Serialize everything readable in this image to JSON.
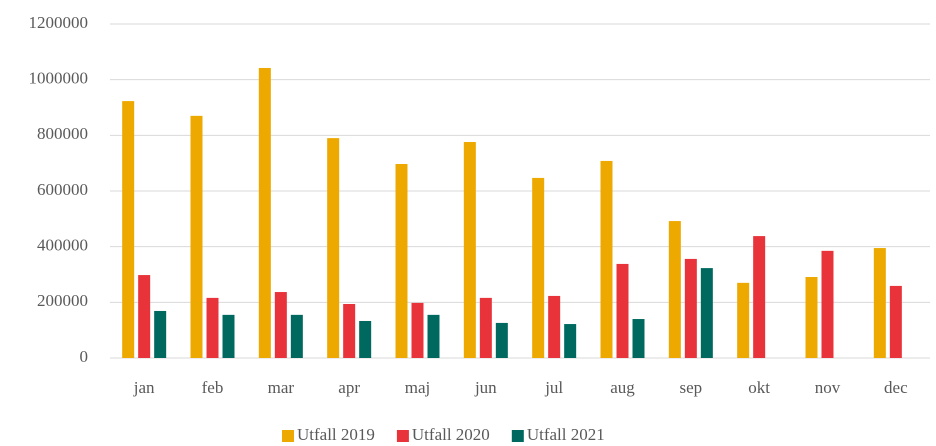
{
  "chart_data": {
    "type": "bar",
    "categories": [
      "jan",
      "feb",
      "mar",
      "apr",
      "maj",
      "jun",
      "jul",
      "aug",
      "sep",
      "okt",
      "nov",
      "dec"
    ],
    "series": [
      {
        "name": "Utfall 2019",
        "color": "#eda900",
        "values": [
          923000,
          870000,
          1042000,
          790000,
          697000,
          776000,
          647000,
          708000,
          492000,
          270000,
          291000,
          395000
        ]
      },
      {
        "name": "Utfall 2020",
        "color": "#e8333a",
        "values": [
          298000,
          216000,
          237000,
          194000,
          198000,
          216000,
          223000,
          338000,
          356000,
          438000,
          385000,
          259000
        ]
      },
      {
        "name": "Utfall 2021",
        "color": "#00695f",
        "values": [
          169000,
          155000,
          155000,
          133000,
          155000,
          126000,
          122000,
          140000,
          323000,
          null,
          null,
          null
        ]
      }
    ],
    "ylim": [
      0,
      1200000
    ],
    "yticks": [
      0,
      200000,
      400000,
      600000,
      800000,
      1000000,
      1200000
    ],
    "grid": true,
    "legend": "bottom"
  }
}
